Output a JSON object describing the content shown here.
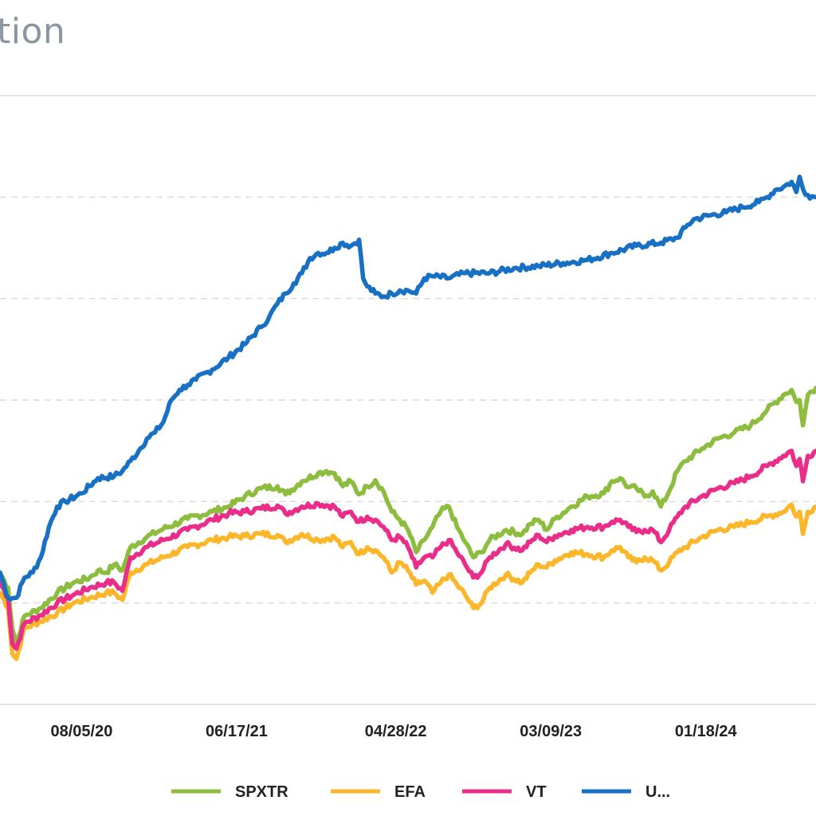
{
  "page": {
    "title": "tion"
  },
  "chart_data": {
    "type": "line",
    "title": "tion",
    "xlabel": "",
    "ylabel": "",
    "x_index_range": [
      0,
      100
    ],
    "ylim": [
      0,
      6
    ],
    "y_grid": [
      0,
      1,
      2,
      3,
      4,
      5,
      6
    ],
    "grid": "dashed-horizontal",
    "x_tick_labels": [
      {
        "label": "08/05/20",
        "x": 10
      },
      {
        "label": "06/17/21",
        "x": 29
      },
      {
        "label": "04/28/22",
        "x": 48.5
      },
      {
        "label": "03/09/23",
        "x": 67.5
      },
      {
        "label": "01/18/24",
        "x": 86.5
      }
    ],
    "legend_position": "bottom-center",
    "series": [
      {
        "name": "SPXTR",
        "color": "#8dbd3f",
        "points": [
          [
            0,
            1.3
          ],
          [
            1,
            1.15
          ],
          [
            1.5,
            0.75
          ],
          [
            2,
            0.6
          ],
          [
            3,
            0.87
          ],
          [
            5,
            0.95
          ],
          [
            7,
            1.1
          ],
          [
            9,
            1.2
          ],
          [
            11,
            1.25
          ],
          [
            12,
            1.32
          ],
          [
            13,
            1.3
          ],
          [
            14,
            1.38
          ],
          [
            15,
            1.32
          ],
          [
            16,
            1.55
          ],
          [
            18,
            1.65
          ],
          [
            20,
            1.73
          ],
          [
            23,
            1.83
          ],
          [
            26,
            1.9
          ],
          [
            28,
            1.95
          ],
          [
            30,
            2.05
          ],
          [
            32,
            2.13
          ],
          [
            34,
            2.15
          ],
          [
            35,
            2.07
          ],
          [
            37,
            2.2
          ],
          [
            39,
            2.28
          ],
          [
            40,
            2.3
          ],
          [
            41,
            2.28
          ],
          [
            42,
            2.15
          ],
          [
            43,
            2.2
          ],
          [
            44,
            2.07
          ],
          [
            45,
            2.15
          ],
          [
            46,
            2.21
          ],
          [
            47,
            2.1
          ],
          [
            48,
            1.9
          ],
          [
            49,
            1.82
          ],
          [
            50,
            1.72
          ],
          [
            51,
            1.5
          ],
          [
            52,
            1.62
          ],
          [
            53,
            1.75
          ],
          [
            54,
            1.9
          ],
          [
            55,
            1.95
          ],
          [
            56,
            1.75
          ],
          [
            57,
            1.6
          ],
          [
            58,
            1.45
          ],
          [
            59,
            1.5
          ],
          [
            60,
            1.62
          ],
          [
            62,
            1.72
          ],
          [
            64,
            1.68
          ],
          [
            65,
            1.78
          ],
          [
            66,
            1.82
          ],
          [
            67,
            1.72
          ],
          [
            68,
            1.83
          ],
          [
            70,
            1.95
          ],
          [
            72,
            2.05
          ],
          [
            74,
            2.08
          ],
          [
            75,
            2.2
          ],
          [
            76,
            2.23
          ],
          [
            77,
            2.14
          ],
          [
            78,
            2.13
          ],
          [
            79,
            2.05
          ],
          [
            80,
            2.1
          ],
          [
            81,
            1.95
          ],
          [
            82,
            2.1
          ],
          [
            83,
            2.3
          ],
          [
            84,
            2.4
          ],
          [
            86,
            2.52
          ],
          [
            88,
            2.62
          ],
          [
            90,
            2.68
          ],
          [
            92,
            2.75
          ],
          [
            94,
            2.9
          ],
          [
            96,
            3.05
          ],
          [
            97,
            3.1
          ],
          [
            97.6,
            2.98
          ],
          [
            98,
            3.0
          ],
          [
            98.4,
            2.75
          ],
          [
            99,
            3.05
          ],
          [
            100,
            3.12
          ]
        ]
      },
      {
        "name": "EFA",
        "color": "#fbb62a",
        "points": [
          [
            0,
            1.1
          ],
          [
            1,
            0.95
          ],
          [
            1.5,
            0.5
          ],
          [
            2,
            0.45
          ],
          [
            3,
            0.75
          ],
          [
            5,
            0.82
          ],
          [
            7,
            0.9
          ],
          [
            9,
            1.0
          ],
          [
            11,
            1.05
          ],
          [
            13,
            1.1
          ],
          [
            14,
            1.1
          ],
          [
            15,
            1.03
          ],
          [
            16,
            1.3
          ],
          [
            18,
            1.38
          ],
          [
            20,
            1.45
          ],
          [
            23,
            1.55
          ],
          [
            26,
            1.62
          ],
          [
            28,
            1.65
          ],
          [
            30,
            1.66
          ],
          [
            32,
            1.68
          ],
          [
            34,
            1.67
          ],
          [
            35,
            1.6
          ],
          [
            37,
            1.68
          ],
          [
            39,
            1.62
          ],
          [
            41,
            1.65
          ],
          [
            42,
            1.55
          ],
          [
            43,
            1.6
          ],
          [
            44,
            1.48
          ],
          [
            45,
            1.55
          ],
          [
            46,
            1.52
          ],
          [
            47,
            1.45
          ],
          [
            48,
            1.3
          ],
          [
            49,
            1.4
          ],
          [
            50,
            1.32
          ],
          [
            51,
            1.18
          ],
          [
            52,
            1.22
          ],
          [
            53,
            1.1
          ],
          [
            54,
            1.2
          ],
          [
            55,
            1.28
          ],
          [
            56,
            1.18
          ],
          [
            57,
            1.08
          ],
          [
            58,
            0.95
          ],
          [
            59,
            1.0
          ],
          [
            60,
            1.15
          ],
          [
            62,
            1.28
          ],
          [
            64,
            1.2
          ],
          [
            65,
            1.3
          ],
          [
            66,
            1.38
          ],
          [
            67,
            1.35
          ],
          [
            68,
            1.42
          ],
          [
            70,
            1.5
          ],
          [
            72,
            1.48
          ],
          [
            74,
            1.45
          ],
          [
            75,
            1.52
          ],
          [
            76,
            1.55
          ],
          [
            77,
            1.45
          ],
          [
            78,
            1.4
          ],
          [
            79,
            1.45
          ],
          [
            80,
            1.42
          ],
          [
            81,
            1.32
          ],
          [
            82,
            1.4
          ],
          [
            83,
            1.5
          ],
          [
            84,
            1.55
          ],
          [
            86,
            1.65
          ],
          [
            88,
            1.72
          ],
          [
            90,
            1.75
          ],
          [
            92,
            1.8
          ],
          [
            94,
            1.85
          ],
          [
            96,
            1.9
          ],
          [
            97,
            1.97
          ],
          [
            97.6,
            1.85
          ],
          [
            98,
            1.9
          ],
          [
            98.4,
            1.68
          ],
          [
            99,
            1.9
          ],
          [
            100,
            1.95
          ]
        ]
      },
      {
        "name": "VT",
        "color": "#eb2d8a",
        "points": [
          [
            0,
            1.2
          ],
          [
            1,
            1.05
          ],
          [
            1.5,
            0.6
          ],
          [
            2,
            0.55
          ],
          [
            3,
            0.8
          ],
          [
            5,
            0.88
          ],
          [
            7,
            1.0
          ],
          [
            9,
            1.08
          ],
          [
            11,
            1.15
          ],
          [
            13,
            1.2
          ],
          [
            14,
            1.2
          ],
          [
            15,
            1.12
          ],
          [
            16,
            1.45
          ],
          [
            18,
            1.55
          ],
          [
            20,
            1.62
          ],
          [
            23,
            1.72
          ],
          [
            26,
            1.82
          ],
          [
            28,
            1.88
          ],
          [
            30,
            1.9
          ],
          [
            32,
            1.93
          ],
          [
            34,
            1.96
          ],
          [
            35,
            1.88
          ],
          [
            37,
            1.95
          ],
          [
            39,
            1.98
          ],
          [
            41,
            1.95
          ],
          [
            42,
            1.85
          ],
          [
            43,
            1.9
          ],
          [
            44,
            1.8
          ],
          [
            45,
            1.85
          ],
          [
            46,
            1.82
          ],
          [
            47,
            1.75
          ],
          [
            48,
            1.62
          ],
          [
            49,
            1.65
          ],
          [
            50,
            1.55
          ],
          [
            51,
            1.35
          ],
          [
            52,
            1.45
          ],
          [
            53,
            1.45
          ],
          [
            54,
            1.55
          ],
          [
            55,
            1.62
          ],
          [
            56,
            1.5
          ],
          [
            57,
            1.38
          ],
          [
            58,
            1.25
          ],
          [
            59,
            1.3
          ],
          [
            60,
            1.45
          ],
          [
            62,
            1.58
          ],
          [
            64,
            1.52
          ],
          [
            65,
            1.6
          ],
          [
            66,
            1.67
          ],
          [
            67,
            1.6
          ],
          [
            68,
            1.66
          ],
          [
            70,
            1.72
          ],
          [
            72,
            1.75
          ],
          [
            74,
            1.75
          ],
          [
            75,
            1.8
          ],
          [
            76,
            1.82
          ],
          [
            77,
            1.75
          ],
          [
            78,
            1.7
          ],
          [
            79,
            1.72
          ],
          [
            80,
            1.72
          ],
          [
            81,
            1.6
          ],
          [
            82,
            1.72
          ],
          [
            83,
            1.85
          ],
          [
            84,
            1.95
          ],
          [
            86,
            2.05
          ],
          [
            88,
            2.13
          ],
          [
            90,
            2.18
          ],
          [
            92,
            2.25
          ],
          [
            94,
            2.35
          ],
          [
            96,
            2.45
          ],
          [
            97,
            2.5
          ],
          [
            97.6,
            2.35
          ],
          [
            98,
            2.42
          ],
          [
            98.4,
            2.2
          ],
          [
            99,
            2.45
          ],
          [
            100,
            2.5
          ]
        ]
      },
      {
        "name": "U...",
        "color": "#1770c4",
        "points": [
          [
            0,
            1.3
          ],
          [
            1,
            1.05
          ],
          [
            2,
            1.05
          ],
          [
            3,
            1.25
          ],
          [
            4,
            1.3
          ],
          [
            5,
            1.45
          ],
          [
            6,
            1.75
          ],
          [
            7,
            1.95
          ],
          [
            8,
            2.0
          ],
          [
            10,
            2.08
          ],
          [
            12,
            2.23
          ],
          [
            14,
            2.25
          ],
          [
            15,
            2.3
          ],
          [
            16,
            2.4
          ],
          [
            17,
            2.5
          ],
          [
            18,
            2.62
          ],
          [
            19,
            2.68
          ],
          [
            20,
            2.78
          ],
          [
            21,
            3.0
          ],
          [
            22,
            3.1
          ],
          [
            23,
            3.15
          ],
          [
            24,
            3.2
          ],
          [
            26,
            3.3
          ],
          [
            28,
            3.42
          ],
          [
            30,
            3.55
          ],
          [
            32,
            3.72
          ],
          [
            33,
            3.82
          ],
          [
            34,
            3.95
          ],
          [
            35,
            4.05
          ],
          [
            36,
            4.15
          ],
          [
            37,
            4.25
          ],
          [
            38,
            4.4
          ],
          [
            39,
            4.45
          ],
          [
            40,
            4.45
          ],
          [
            41,
            4.5
          ],
          [
            42,
            4.55
          ],
          [
            43,
            4.52
          ],
          [
            44,
            4.58
          ],
          [
            44.5,
            4.2
          ],
          [
            45,
            4.12
          ],
          [
            46,
            4.05
          ],
          [
            47,
            4.02
          ],
          [
            48,
            4.05
          ],
          [
            49,
            4.08
          ],
          [
            50,
            4.08
          ],
          [
            51,
            4.05
          ],
          [
            52,
            4.2
          ],
          [
            53,
            4.22
          ],
          [
            55,
            4.2
          ],
          [
            57,
            4.25
          ],
          [
            60,
            4.25
          ],
          [
            63,
            4.3
          ],
          [
            66,
            4.32
          ],
          [
            69,
            4.35
          ],
          [
            72,
            4.38
          ],
          [
            75,
            4.45
          ],
          [
            78,
            4.52
          ],
          [
            81,
            4.55
          ],
          [
            83,
            4.6
          ],
          [
            84,
            4.7
          ],
          [
            85,
            4.78
          ],
          [
            87,
            4.82
          ],
          [
            89,
            4.85
          ],
          [
            91,
            4.9
          ],
          [
            93,
            4.95
          ],
          [
            94,
            5.0
          ],
          [
            95,
            5.07
          ],
          [
            96,
            5.1
          ],
          [
            97,
            5.15
          ],
          [
            97.6,
            5.05
          ],
          [
            98,
            5.2
          ],
          [
            98.4,
            5.08
          ],
          [
            99,
            5.02
          ],
          [
            100,
            5.0
          ]
        ]
      }
    ]
  }
}
